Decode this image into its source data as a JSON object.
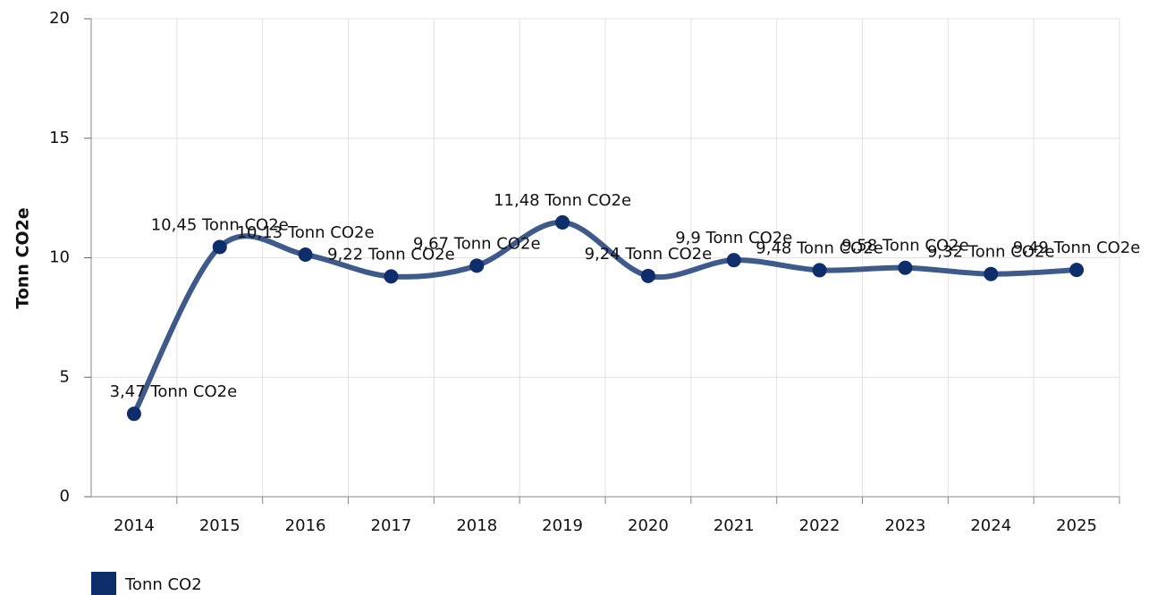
{
  "chart_data": {
    "type": "line",
    "ylabel": "Tonn CO2e",
    "categories": [
      "2014",
      "2015",
      "2016",
      "2017",
      "2018",
      "2019",
      "2020",
      "2021",
      "2022",
      "2023",
      "2024",
      "2025"
    ],
    "series": [
      {
        "name": "Tonn CO2",
        "color": "#3d5a8a",
        "marker_color": "#0d2d6b",
        "values": [
          3.47,
          10.45,
          10.13,
          9.22,
          9.67,
          11.48,
          9.24,
          9.9,
          9.48,
          9.58,
          9.32,
          9.49
        ],
        "value_labels": [
          "3,47 Tonn CO2e",
          "10,45 Tonn CO2e",
          "10,13 Tonn CO2e",
          "9,22 Tonn CO2e",
          "9,67 Tonn CO2e",
          "11,48 Tonn CO2e",
          "9,24 Tonn CO2e",
          "9,9 Tonn CO2e",
          "9,48 Tonn CO2e",
          "9,58 Tonn CO2e",
          "9,32 Tonn CO2e",
          "9,49 Tonn CO2e"
        ]
      }
    ],
    "ylim": [
      0,
      20
    ],
    "yticks": [
      0,
      5,
      10,
      15,
      20
    ],
    "grid": true
  }
}
